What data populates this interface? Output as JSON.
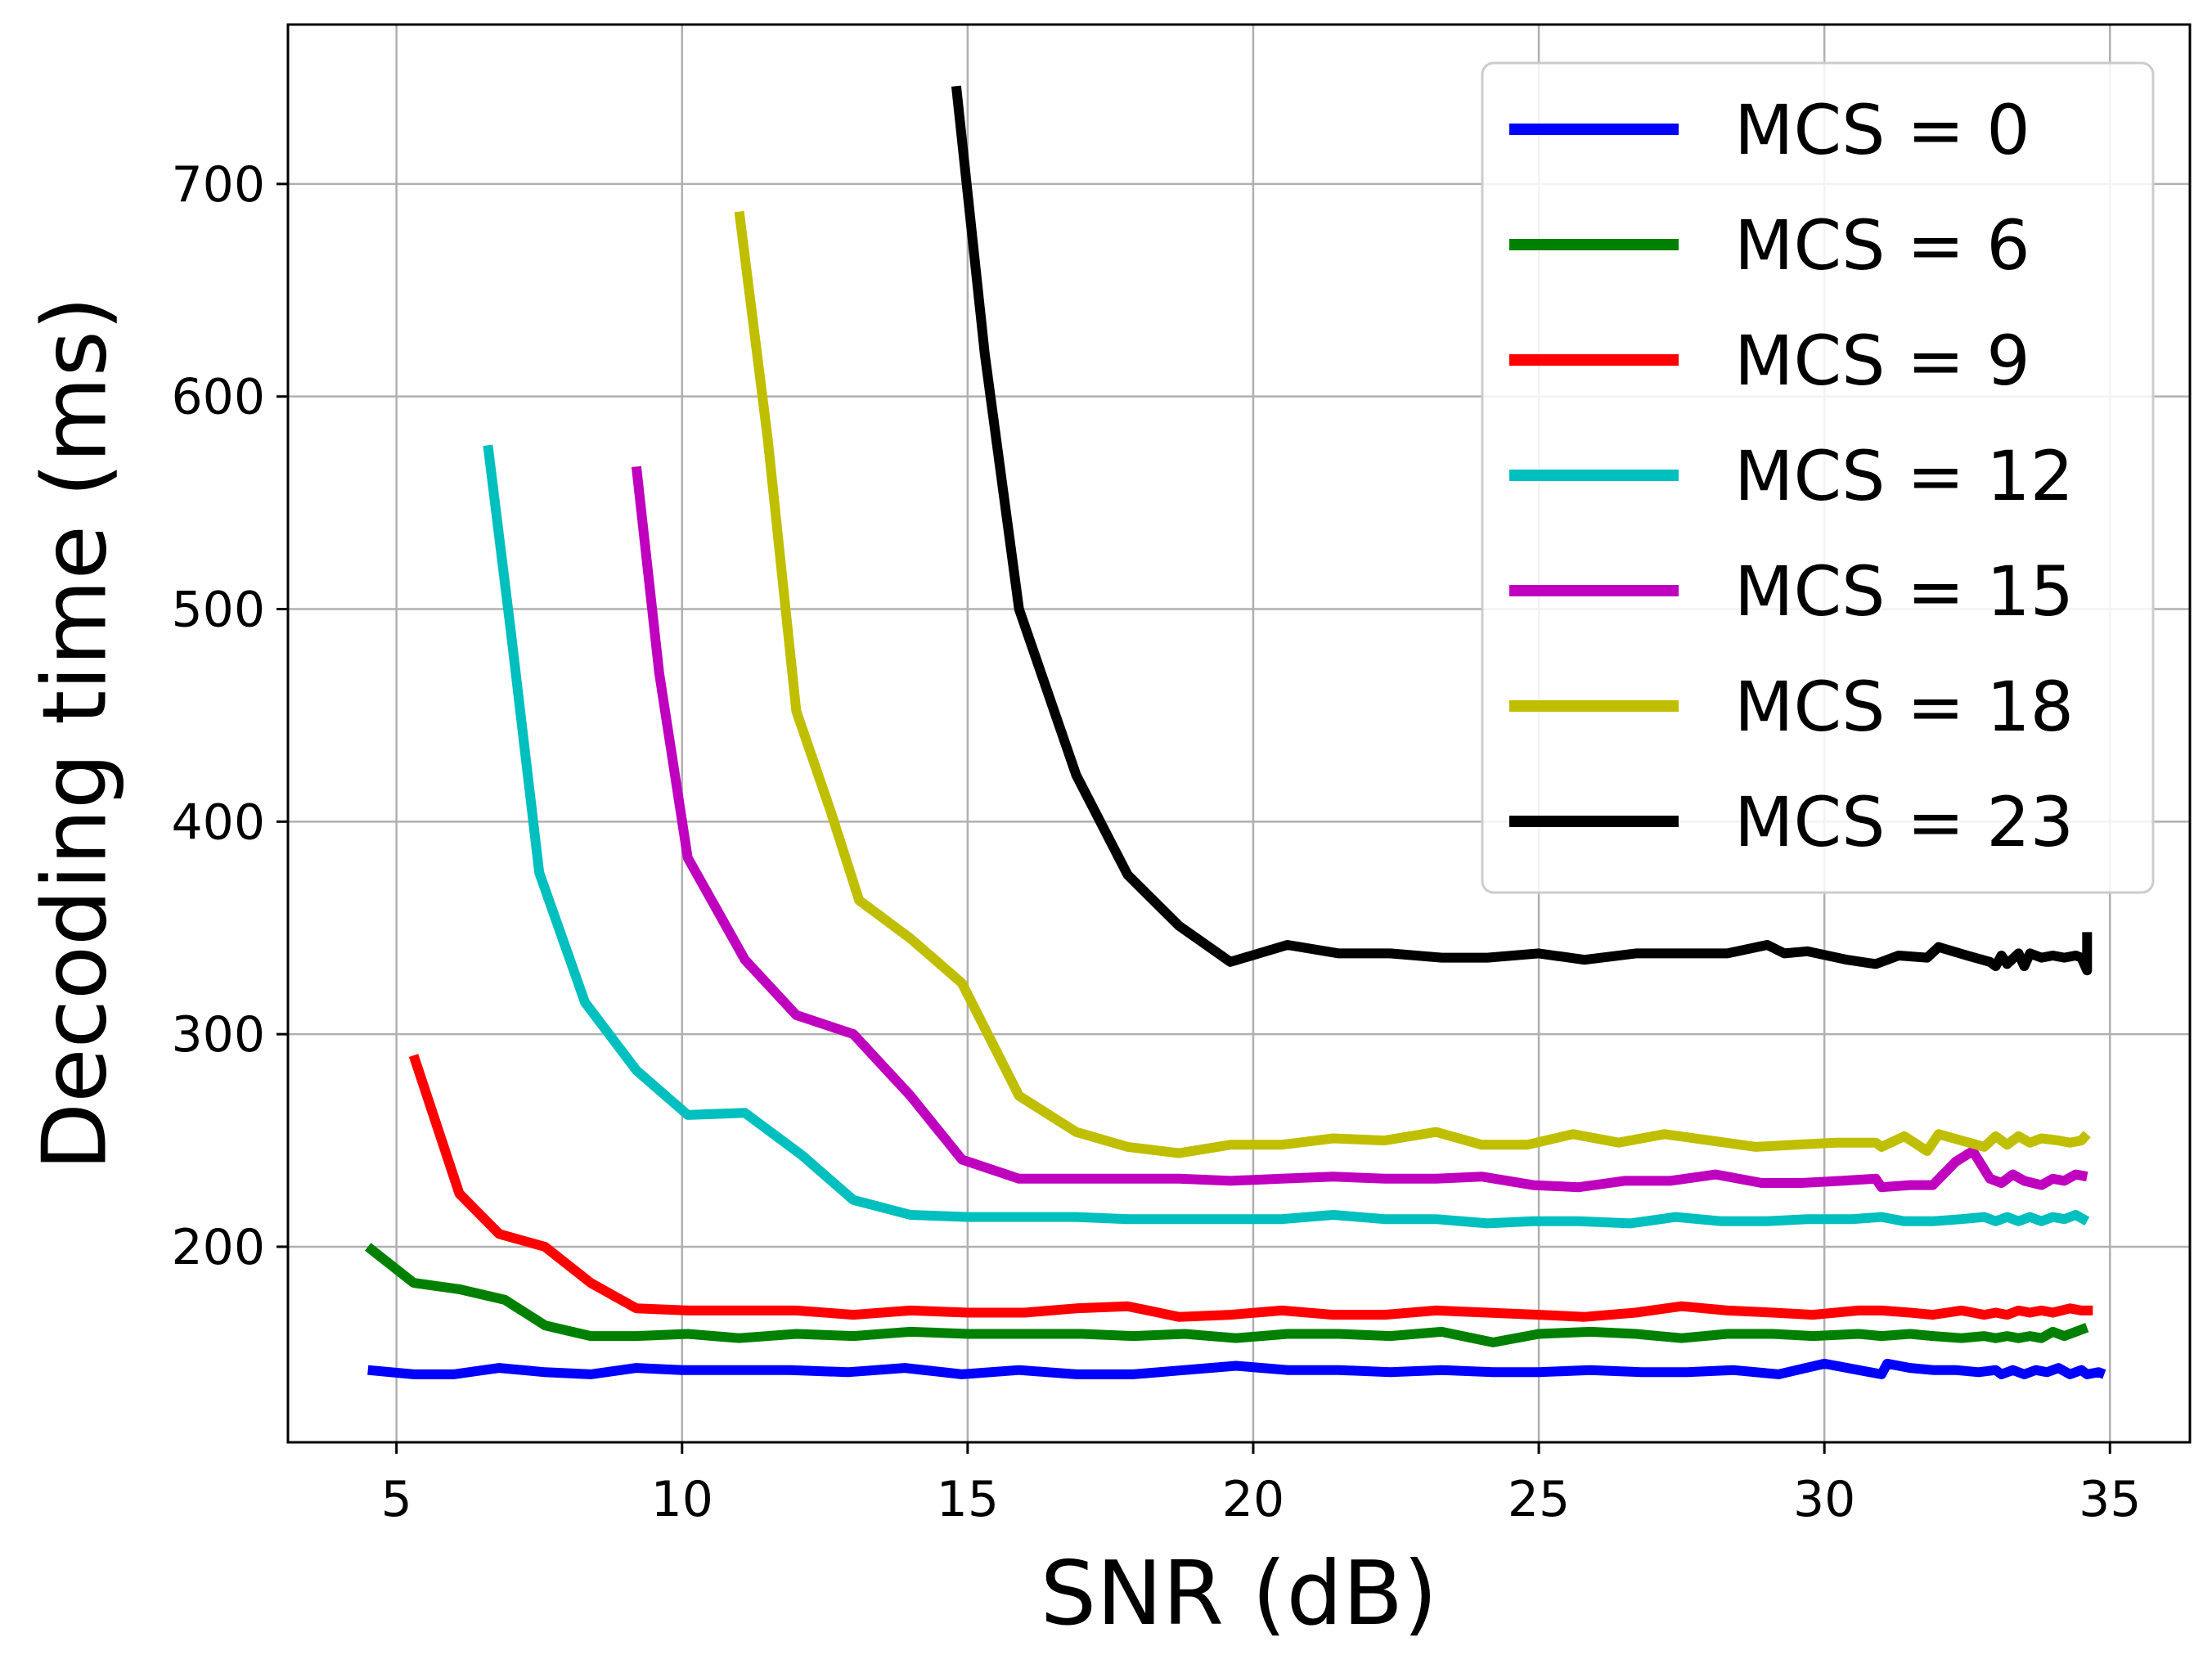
{
  "chart_data": {
    "type": "line",
    "title": "",
    "xlabel": "SNR (dB)",
    "ylabel": "Decoding time (ms)",
    "xlim": [
      3.1,
      36.4
    ],
    "ylim": [
      108,
      775
    ],
    "xticks": [
      5,
      10,
      15,
      20,
      25,
      30,
      35
    ],
    "yticks": [
      200,
      300,
      400,
      500,
      600,
      700
    ],
    "grid": true,
    "legend_position": "top-right",
    "series": [
      {
        "name": "MCS = 0",
        "color": "#0000ff",
        "points": [
          [
            4.5,
            142
          ],
          [
            5.3,
            140
          ],
          [
            6.0,
            140
          ],
          [
            6.8,
            143
          ],
          [
            7.6,
            141
          ],
          [
            8.4,
            140
          ],
          [
            9.2,
            143
          ],
          [
            10.0,
            142
          ],
          [
            10.9,
            142
          ],
          [
            11.9,
            142
          ],
          [
            12.9,
            141
          ],
          [
            13.9,
            143
          ],
          [
            14.9,
            140
          ],
          [
            15.9,
            142
          ],
          [
            16.9,
            140
          ],
          [
            17.9,
            140
          ],
          [
            18.8,
            142
          ],
          [
            19.7,
            144
          ],
          [
            20.6,
            142
          ],
          [
            21.5,
            142
          ],
          [
            22.4,
            141
          ],
          [
            23.3,
            142
          ],
          [
            24.2,
            141
          ],
          [
            25.0,
            141
          ],
          [
            25.9,
            142
          ],
          [
            26.8,
            141
          ],
          [
            27.6,
            141
          ],
          [
            28.4,
            142
          ],
          [
            29.2,
            140
          ],
          [
            30.0,
            145
          ],
          [
            30.8,
            141
          ],
          [
            31.0,
            140
          ],
          [
            31.1,
            145
          ],
          [
            31.5,
            143
          ],
          [
            31.9,
            142
          ],
          [
            32.3,
            142
          ],
          [
            32.7,
            141
          ],
          [
            33.0,
            142
          ],
          [
            33.1,
            140
          ],
          [
            33.3,
            142
          ],
          [
            33.5,
            140
          ],
          [
            33.7,
            142
          ],
          [
            33.9,
            141
          ],
          [
            34.1,
            143
          ],
          [
            34.3,
            140
          ],
          [
            34.5,
            142
          ],
          [
            34.6,
            140
          ],
          [
            34.8,
            141
          ],
          [
            34.9,
            140
          ]
        ]
      },
      {
        "name": "MCS = 6",
        "color": "#008000",
        "points": [
          [
            4.5,
            200
          ],
          [
            5.3,
            183
          ],
          [
            6.1,
            180
          ],
          [
            6.9,
            175
          ],
          [
            7.6,
            163
          ],
          [
            8.4,
            158
          ],
          [
            9.2,
            158
          ],
          [
            10.1,
            159
          ],
          [
            11.0,
            157
          ],
          [
            12.0,
            159
          ],
          [
            13.0,
            158
          ],
          [
            14.0,
            160
          ],
          [
            15.0,
            159
          ],
          [
            16.0,
            159
          ],
          [
            17.0,
            159
          ],
          [
            17.9,
            158
          ],
          [
            18.8,
            159
          ],
          [
            19.7,
            157
          ],
          [
            20.6,
            159
          ],
          [
            21.5,
            159
          ],
          [
            22.4,
            158
          ],
          [
            23.3,
            160
          ],
          [
            24.2,
            155
          ],
          [
            25.0,
            159
          ],
          [
            25.9,
            160
          ],
          [
            26.7,
            159
          ],
          [
            27.5,
            157
          ],
          [
            28.3,
            159
          ],
          [
            29.1,
            159
          ],
          [
            29.8,
            158
          ],
          [
            30.6,
            159
          ],
          [
            31.0,
            158
          ],
          [
            31.5,
            159
          ],
          [
            31.9,
            158
          ],
          [
            32.4,
            157
          ],
          [
            32.8,
            158
          ],
          [
            33.0,
            157
          ],
          [
            33.2,
            158
          ],
          [
            33.4,
            157
          ],
          [
            33.6,
            158
          ],
          [
            33.8,
            157
          ],
          [
            34.0,
            160
          ],
          [
            34.2,
            158
          ],
          [
            34.4,
            160
          ],
          [
            34.5,
            161
          ],
          [
            34.6,
            162
          ]
        ]
      },
      {
        "name": "MCS = 9",
        "color": "#ff0000",
        "points": [
          [
            5.3,
            290
          ],
          [
            6.1,
            225
          ],
          [
            6.8,
            206
          ],
          [
            7.6,
            200
          ],
          [
            8.4,
            183
          ],
          [
            9.2,
            171
          ],
          [
            10.1,
            170
          ],
          [
            11.0,
            170
          ],
          [
            12.0,
            170
          ],
          [
            13.0,
            168
          ],
          [
            14.0,
            170
          ],
          [
            15.0,
            169
          ],
          [
            16.0,
            169
          ],
          [
            16.9,
            171
          ],
          [
            17.8,
            172
          ],
          [
            18.7,
            167
          ],
          [
            19.6,
            168
          ],
          [
            20.5,
            170
          ],
          [
            21.4,
            168
          ],
          [
            22.3,
            168
          ],
          [
            23.2,
            170
          ],
          [
            24.1,
            169
          ],
          [
            25.0,
            168
          ],
          [
            25.8,
            167
          ],
          [
            26.7,
            169
          ],
          [
            27.5,
            172
          ],
          [
            28.3,
            170
          ],
          [
            29.1,
            169
          ],
          [
            29.8,
            168
          ],
          [
            30.6,
            170
          ],
          [
            31.0,
            170
          ],
          [
            31.5,
            169
          ],
          [
            31.9,
            168
          ],
          [
            32.4,
            170
          ],
          [
            32.8,
            168
          ],
          [
            33.0,
            169
          ],
          [
            33.2,
            168
          ],
          [
            33.4,
            170
          ],
          [
            33.6,
            169
          ],
          [
            33.8,
            170
          ],
          [
            34.0,
            169
          ],
          [
            34.3,
            171
          ],
          [
            34.5,
            170
          ],
          [
            34.7,
            170
          ]
        ]
      },
      {
        "name": "MCS = 12",
        "color": "#00bfbf",
        "points": [
          [
            6.6,
            577
          ],
          [
            7.0,
            490
          ],
          [
            7.5,
            376
          ],
          [
            8.3,
            315
          ],
          [
            9.2,
            283
          ],
          [
            10.1,
            262
          ],
          [
            11.1,
            263
          ],
          [
            12.1,
            243
          ],
          [
            13.0,
            222
          ],
          [
            14.0,
            215
          ],
          [
            15.0,
            214
          ],
          [
            16.0,
            214
          ],
          [
            16.9,
            214
          ],
          [
            17.8,
            213
          ],
          [
            18.7,
            213
          ],
          [
            19.6,
            213
          ],
          [
            20.5,
            213
          ],
          [
            21.4,
            215
          ],
          [
            22.3,
            213
          ],
          [
            23.2,
            213
          ],
          [
            24.1,
            211
          ],
          [
            24.9,
            212
          ],
          [
            25.7,
            212
          ],
          [
            26.6,
            211
          ],
          [
            27.4,
            214
          ],
          [
            28.2,
            212
          ],
          [
            29.0,
            212
          ],
          [
            29.7,
            213
          ],
          [
            30.5,
            213
          ],
          [
            31.0,
            214
          ],
          [
            31.4,
            212
          ],
          [
            31.9,
            212
          ],
          [
            32.4,
            213
          ],
          [
            32.8,
            214
          ],
          [
            33.0,
            212
          ],
          [
            33.2,
            214
          ],
          [
            33.4,
            212
          ],
          [
            33.6,
            214
          ],
          [
            33.8,
            212
          ],
          [
            34.0,
            214
          ],
          [
            34.2,
            213
          ],
          [
            34.4,
            215
          ],
          [
            34.6,
            212
          ]
        ]
      },
      {
        "name": "MCS = 15",
        "color": "#bf00bf",
        "points": [
          [
            9.2,
            567
          ],
          [
            9.6,
            470
          ],
          [
            10.1,
            383
          ],
          [
            11.1,
            335
          ],
          [
            12.0,
            309
          ],
          [
            13.0,
            300
          ],
          [
            14.0,
            271
          ],
          [
            14.9,
            241
          ],
          [
            15.9,
            232
          ],
          [
            16.9,
            232
          ],
          [
            17.8,
            232
          ],
          [
            18.7,
            232
          ],
          [
            19.6,
            231
          ],
          [
            20.5,
            232
          ],
          [
            21.4,
            233
          ],
          [
            22.3,
            232
          ],
          [
            23.2,
            232
          ],
          [
            24.0,
            233
          ],
          [
            24.9,
            229
          ],
          [
            25.7,
            228
          ],
          [
            26.5,
            231
          ],
          [
            27.3,
            231
          ],
          [
            28.1,
            234
          ],
          [
            28.9,
            230
          ],
          [
            29.6,
            230
          ],
          [
            30.3,
            231
          ],
          [
            30.9,
            232
          ],
          [
            31.0,
            228
          ],
          [
            31.5,
            229
          ],
          [
            31.9,
            229
          ],
          [
            32.3,
            240
          ],
          [
            32.6,
            245
          ],
          [
            32.9,
            232
          ],
          [
            33.1,
            230
          ],
          [
            33.3,
            234
          ],
          [
            33.5,
            231
          ],
          [
            33.8,
            229
          ],
          [
            34.0,
            232
          ],
          [
            34.2,
            231
          ],
          [
            34.4,
            234
          ],
          [
            34.6,
            233
          ]
        ]
      },
      {
        "name": "MCS = 18",
        "color": "#bfbf00",
        "points": [
          [
            11.0,
            687
          ],
          [
            11.5,
            580
          ],
          [
            12.0,
            452
          ],
          [
            12.6,
            405
          ],
          [
            13.1,
            363
          ],
          [
            14.0,
            345
          ],
          [
            14.9,
            324
          ],
          [
            15.9,
            271
          ],
          [
            16.9,
            254
          ],
          [
            17.8,
            247
          ],
          [
            18.7,
            244
          ],
          [
            19.6,
            248
          ],
          [
            20.5,
            248
          ],
          [
            21.4,
            251
          ],
          [
            22.3,
            250
          ],
          [
            23.2,
            254
          ],
          [
            24.0,
            248
          ],
          [
            24.8,
            248
          ],
          [
            25.6,
            253
          ],
          [
            26.4,
            249
          ],
          [
            27.2,
            253
          ],
          [
            28.0,
            250
          ],
          [
            28.8,
            247
          ],
          [
            29.5,
            248
          ],
          [
            30.2,
            249
          ],
          [
            30.9,
            249
          ],
          [
            31.0,
            247
          ],
          [
            31.4,
            252
          ],
          [
            31.8,
            245
          ],
          [
            32.0,
            253
          ],
          [
            32.4,
            250
          ],
          [
            32.8,
            247
          ],
          [
            33.0,
            252
          ],
          [
            33.2,
            248
          ],
          [
            33.4,
            252
          ],
          [
            33.6,
            249
          ],
          [
            33.8,
            251
          ],
          [
            34.1,
            250
          ],
          [
            34.3,
            249
          ],
          [
            34.5,
            250
          ],
          [
            34.6,
            253
          ]
        ]
      },
      {
        "name": "MCS = 23",
        "color": "#000000",
        "points": [
          [
            14.8,
            746
          ],
          [
            15.3,
            620
          ],
          [
            15.9,
            500
          ],
          [
            16.9,
            422
          ],
          [
            17.8,
            375
          ],
          [
            18.7,
            351
          ],
          [
            19.6,
            334
          ],
          [
            20.6,
            342
          ],
          [
            21.5,
            338
          ],
          [
            22.4,
            338
          ],
          [
            23.3,
            336
          ],
          [
            24.1,
            336
          ],
          [
            25.0,
            338
          ],
          [
            25.8,
            335
          ],
          [
            26.7,
            338
          ],
          [
            27.5,
            338
          ],
          [
            28.3,
            338
          ],
          [
            29.0,
            342
          ],
          [
            29.3,
            338
          ],
          [
            29.7,
            339
          ],
          [
            30.4,
            335
          ],
          [
            30.9,
            333
          ],
          [
            31.3,
            337
          ],
          [
            31.8,
            336
          ],
          [
            32.0,
            341
          ],
          [
            32.5,
            337
          ],
          [
            32.9,
            334
          ],
          [
            33.0,
            332
          ],
          [
            33.1,
            337
          ],
          [
            33.2,
            333
          ],
          [
            33.4,
            338
          ],
          [
            33.5,
            332
          ],
          [
            33.6,
            338
          ],
          [
            33.8,
            336
          ],
          [
            34.0,
            337
          ],
          [
            34.2,
            336
          ],
          [
            34.4,
            337
          ],
          [
            34.5,
            336
          ],
          [
            34.6,
            330
          ],
          [
            34.6,
            348
          ]
        ]
      }
    ]
  }
}
